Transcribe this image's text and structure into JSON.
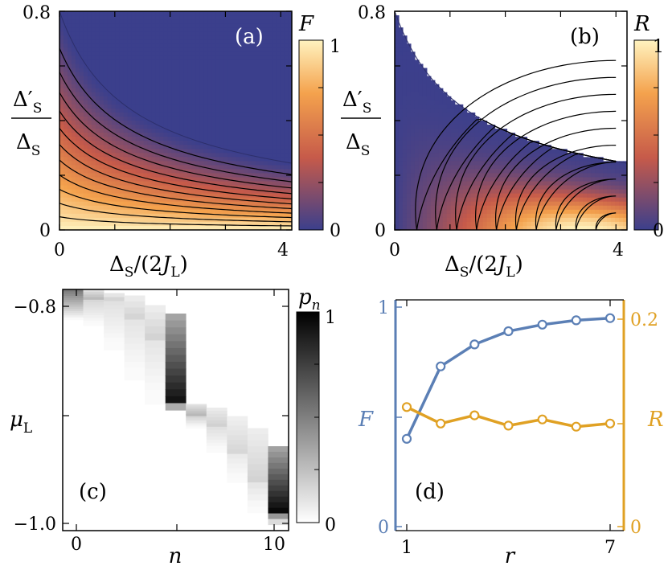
{
  "chart_data": [
    {
      "panel": "(a)",
      "type": "heatmap",
      "colorbar_label": "F",
      "colorbar_ticks": [
        "1",
        "0"
      ],
      "colorbar_range": [
        0,
        1
      ],
      "ylabel": "Δ′S / ΔS",
      "ylabel_num": "Δ′",
      "ylabel_den": "Δ",
      "ylabel_sub": "S",
      "xlabel": "ΔS/(2JL)",
      "xlabel_main": "Δ",
      "xlabel_sub": "S",
      "xlabel_mid": "/(2",
      "xlabel_J": "J",
      "xlabel_sub2": "L",
      "xlabel_end": ")",
      "xlim": [
        0,
        4.2
      ],
      "ylim": [
        0,
        0.8
      ],
      "x_ticks": [
        "0",
        "4"
      ],
      "y_ticks": [
        "0.8",
        "0"
      ],
      "boundary": "y = 0.8·(1+x)^-0.72 (region above boundary uniformly F = 0)",
      "contours": 11,
      "colormap": [
        "#3b3f8c",
        "#c65a4a",
        "#f4a24d",
        "#fff3bf"
      ]
    },
    {
      "panel": "(b)",
      "type": "heatmap",
      "colorbar_label": "R",
      "colorbar_ticks": [
        "1",
        "0"
      ],
      "colorbar_range": [
        0,
        1
      ],
      "ylabel": "Δ′S / ΔS",
      "xlabel": "ΔS/(2JL)",
      "xlim": [
        0,
        4.2
      ],
      "ylim": [
        0,
        0.8
      ],
      "x_ticks": [
        "0",
        "4"
      ],
      "y_ticks": [
        "0.8",
        "0"
      ],
      "contours": 10,
      "colormap": [
        "#3b3f8c",
        "#c65a4a",
        "#f4a24d",
        "#fff3bf"
      ]
    },
    {
      "panel": "(c)",
      "type": "heatmap",
      "colorbar_label": "p_n",
      "colorbar_label_main": "p",
      "colorbar_label_sub": "n",
      "colorbar_ticks": [
        "1",
        "0"
      ],
      "colorbar_range": [
        0,
        1
      ],
      "ylabel": "μL",
      "ylabel_main": "μ",
      "ylabel_sub": "L",
      "xlabel": "n",
      "x_ticks": [
        "0",
        "10"
      ],
      "y_ticks": [
        "−0.8",
        "−1.0"
      ],
      "xlim": [
        -0.5,
        10.5
      ],
      "ylim": [
        -1.0,
        -0.8
      ],
      "columns": [
        {
          "n": 0,
          "mu_start": -0.8,
          "mu_end": -0.8,
          "mu_min": -0.825,
          "peak": 0.9
        },
        {
          "n": 1,
          "mu_start": -0.8,
          "mu_end": -0.808,
          "mu_min": -0.83,
          "peak": 0.28
        },
        {
          "n": 2,
          "mu_start": -0.803,
          "mu_end": -0.81,
          "mu_min": -0.85,
          "peak": 0.2
        },
        {
          "n": 3,
          "mu_start": -0.805,
          "mu_end": -0.825,
          "mu_min": -0.875,
          "peak": 0.18
        },
        {
          "n": 4,
          "mu_start": -0.813,
          "mu_end": -0.841,
          "mu_min": -0.895,
          "peak": 0.18
        },
        {
          "n": 5,
          "mu_start": -0.82,
          "mu_end": -0.895,
          "mu_min": -0.9,
          "peak": 0.95
        },
        {
          "n": 6,
          "mu_start": -0.895,
          "mu_end": -0.905,
          "mu_min": -0.915,
          "peak": 0.3
        },
        {
          "n": 7,
          "mu_start": -0.898,
          "mu_end": -0.915,
          "mu_min": -0.935,
          "peak": 0.2
        },
        {
          "n": 8,
          "mu_start": -0.905,
          "mu_end": -0.935,
          "mu_min": -0.96,
          "peak": 0.16
        },
        {
          "n": 9,
          "mu_start": -0.915,
          "mu_end": -0.96,
          "mu_min": -0.985,
          "peak": 0.18
        },
        {
          "n": 10,
          "mu_start": -0.93,
          "mu_end": -0.985,
          "mu_min": -0.995,
          "peak": 0.98
        }
      ]
    },
    {
      "panel": "(d)",
      "type": "line",
      "xlabel": "r",
      "x": [
        1,
        2,
        3,
        4,
        5,
        6,
        7
      ],
      "x_ticks": [
        "1",
        "7"
      ],
      "xlim": [
        0.8,
        7.2
      ],
      "series": [
        {
          "name": "F",
          "axis": "left",
          "color": "#5b7fb5",
          "values": [
            0.4,
            0.73,
            0.83,
            0.89,
            0.92,
            0.94,
            0.95
          ]
        },
        {
          "name": "R",
          "axis": "right",
          "color": "#e0a124",
          "values": [
            0.116,
            0.1,
            0.108,
            0.098,
            0.104,
            0.097,
            0.1
          ]
        }
      ],
      "left_ylim": [
        0,
        1
      ],
      "left_ticks": [
        "1",
        "0"
      ],
      "right_ylim": [
        0,
        0.22
      ],
      "right_ticks": [
        "0.2",
        "0"
      ]
    }
  ]
}
